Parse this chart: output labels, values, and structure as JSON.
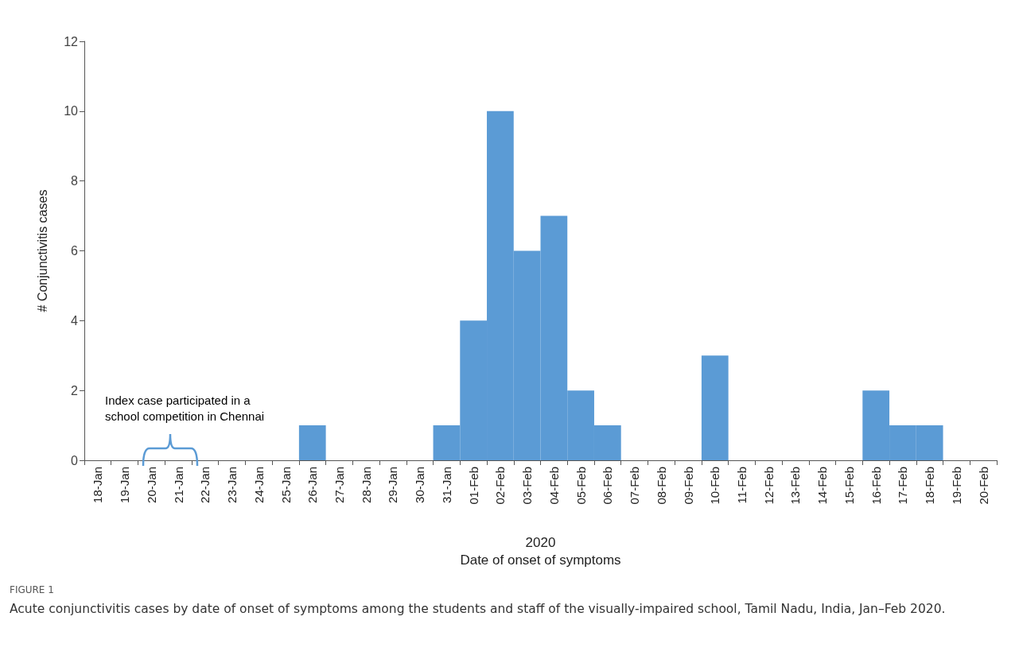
{
  "chart_data": {
    "type": "bar",
    "categories": [
      "18-Jan",
      "19-Jan",
      "20-Jan",
      "21-Jan",
      "22-Jan",
      "23-Jan",
      "24-Jan",
      "25-Jan",
      "26-Jan",
      "27-Jan",
      "28-Jan",
      "29-Jan",
      "30-Jan",
      "31-Jan",
      "01-Feb",
      "02-Feb",
      "03-Feb",
      "04-Feb",
      "05-Feb",
      "06-Feb",
      "07-Feb",
      "08-Feb",
      "09-Feb",
      "10-Feb",
      "11-Feb",
      "12-Feb",
      "13-Feb",
      "14-Feb",
      "15-Feb",
      "16-Feb",
      "17-Feb",
      "18-Feb",
      "19-Feb",
      "20-Feb"
    ],
    "values": [
      0,
      0,
      0,
      0,
      0,
      0,
      0,
      0,
      1,
      0,
      0,
      0,
      0,
      1,
      4,
      10,
      6,
      7,
      2,
      1,
      0,
      0,
      0,
      3,
      0,
      0,
      0,
      0,
      0,
      2,
      1,
      1,
      0,
      0
    ],
    "color": "#5b9bd5",
    "ylim": [
      0,
      12
    ],
    "yticks": [
      0,
      2,
      4,
      6,
      8,
      10,
      12
    ],
    "ylabel": "# Conjunctivitis cases",
    "xlabel": "2020\nDate of onset of symptoms",
    "grid": false,
    "annotations": [
      "Index case participated in a\nschool competition in Chennai",
      "FIGURE 1",
      "Acute conjunctivitis cases by date of onset of symptoms among the students and staff of the visually-impaired school, Tamil Nadu, India, Jan–Feb 2020."
    ]
  }
}
